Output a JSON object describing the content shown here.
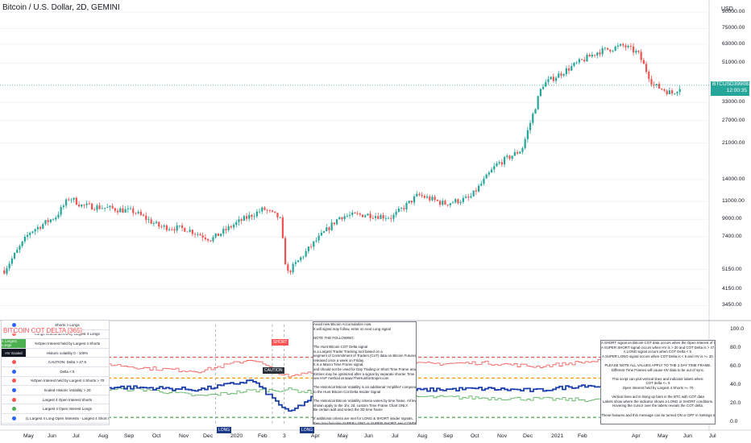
{
  "header": {
    "symbol_title": "Bitcoin / U.S. Dollar, 2D, GEMINI",
    "currency": "USD"
  },
  "price_scale": {
    "labels": [
      "90000.00",
      "75000.00",
      "63000.00",
      "51000.00",
      "33000.00",
      "27000.00",
      "21000.00",
      "14000.00",
      "11000.00",
      "9000.00",
      "7400.00",
      "5150.00",
      "4150.00",
      "3450.00"
    ],
    "price_tag_symbol": "BTCUSD",
    "price_tag_value": "39908.76",
    "price_tag_countdown": "12:00:35",
    "tag_color": "#26a69a"
  },
  "indicator_scale": {
    "labels": [
      "100.0",
      "80.0",
      "60.0",
      "40.0",
      "20.0",
      "0.0"
    ]
  },
  "time_axis": {
    "labels": [
      "May",
      "Jun",
      "Jul",
      "Aug",
      "Sep",
      "Oct",
      "Nov",
      "Dec",
      "2020",
      "Feb",
      "3",
      "Apr",
      "May",
      "Jun",
      "Jul",
      "Aug",
      "Sep",
      "Oct",
      "Nov",
      "Dec",
      "2021",
      "Feb",
      "Apr",
      "May",
      "Jun",
      "Jul"
    ]
  },
  "indicator": {
    "title": "BITCOIN COT DELTA [365]",
    "legend": [
      {
        "key": "",
        "text": "Shorts > Longs",
        "color": "#2962ff"
      },
      {
        "key": "",
        "text": "Longs Outnumbered by Largest 4 Longs",
        "color": "#ff5252"
      },
      {
        "key": "4 Largest Longs",
        "text": "%Open Interest held by Largest 4 Shorts",
        "color": "#4caf50"
      },
      {
        "key": "HV Scaled",
        "text": "Historic volatility 0 - 100%",
        "color": "#131722"
      },
      {
        "key": "",
        "text": "CAUTION: Delta > 47.5",
        "color": "#ff5252"
      },
      {
        "key": "",
        "text": "Delta < 5",
        "color": "#2962ff"
      },
      {
        "key": "",
        "text": "%Open Interest held by Largest 4 Shorts > 70",
        "color": "#ff5252"
      },
      {
        "key": "",
        "text": "Scaled Historic Volatility > 20",
        "color": "#2962ff"
      },
      {
        "key": "",
        "text": "Largest 4 Open Interest Shorts",
        "color": "#ff5252"
      },
      {
        "key": "",
        "text": "Largest 4 Open Interest Longs",
        "color": "#4caf50"
      },
      {
        "key": "",
        "text": "(L Largest 4 Long Open Interests - Largest 4 Short Open Interests)",
        "color": "#2962ff"
      }
    ],
    "callouts": {
      "short": "SHORT",
      "caution": "CAUTION",
      "long_1": "LONG",
      "long_2": "LONG"
    },
    "note_center": "Avoid new Bitcoin Accumulation now.\nIt will signal may follow, enter on next Long signal\n\nNOTE THE FOLLOWING:\n\nThe Hunt Bitcoin COT Delta signal\nis a Largest Trader Tracking tool based on a\nsegment of Commitment of Traders (CoT) data on Bitcoin Futures,\nreleased once a week on Friday.\nIt is a Macro Time Frame signal,\nand should not be used for Day Trading or Short Time Frame analysis.\nEntries may be optimized after a signal by separate shorter Time Frame analysis,\nsee HVF method at www.TheHuntforSniper.com\n\nThe Historical Bitcoin Volatility is an additional 'Amplifier' component\nto the Hunt Bitcoin Cot Delta Insider Signal\n\nThe Historical Bitcoin Volatility criteria varies by time frame. All levels\nshown apply to the 1hr, 2d, custom Time Frame Chart ONLY.\nBe certain add and select the 2D time frame\n\nIf additional criteria are met for LONG & SHORT insider signals,\nthey may become SUPER LONG or SUPER SHORT: see CONDITION above",
    "note_right": "A SHORT signal on Bitcoin COT data occurs when the Open Interest of the Largest 4 Shorts is >= 70.\nA SUPER SHORT signal occurs when HV is > 20 and COT Delta is > 47.5 on the 2 day time frame.\nA LONG signal occurs when COT Delta < 5.\nA SUPER LONG signal occurs when COT Delta is < 5 and HV is >= 20.\n\nPLEASE NOTE ALL VALUES APPLY TO THE 2 DAY TIME FRAME.\nDifferent Time Frames will cause HV data to be out of sync.\n\nThis script can plot vertical lines and indicator labels when:\nCOT delta <= 5\nOpen Interest held by Largest 4 Shorts >= 70\n\nVertical lines aid in lining up bars in the BTC with COT data\nLabels show where the indicator shows a LONG or SHORT conditions.\nHovering the cursor over the labels reveals the COT delta.\n\nThese features and this message can be turned ON or OFF in Settings Inputs"
  },
  "chart_data": [
    {
      "type": "candlestick",
      "title": "Bitcoin / U.S. Dollar, 2D, GEMINI",
      "y_scale": "log",
      "ylabel": "USD",
      "ylim": [
        3000,
        90000
      ],
      "x": [
        "2019-04-15",
        "2019-05-15",
        "2019-06-15",
        "2019-07-01",
        "2019-07-15",
        "2019-08-15",
        "2019-09-15",
        "2019-10-15",
        "2019-11-15",
        "2019-12-15",
        "2020-01-15",
        "2020-02-15",
        "2020-03-05",
        "2020-03-13",
        "2020-04-15",
        "2020-05-15",
        "2020-06-15",
        "2020-07-15",
        "2020-08-15",
        "2020-09-15",
        "2020-10-15",
        "2020-11-15",
        "2020-12-15",
        "2021-01-08",
        "2021-02-15",
        "2021-03-15",
        "2021-04-14",
        "2021-05-01",
        "2021-05-19",
        "2021-06-10",
        "2021-06-22"
      ],
      "close": [
        5100,
        7800,
        9300,
        11500,
        10500,
        10200,
        9800,
        8300,
        8100,
        7200,
        8700,
        10100,
        9100,
        4900,
        7000,
        9300,
        9500,
        9200,
        11800,
        10700,
        11400,
        16500,
        19500,
        40000,
        50000,
        58000,
        62000,
        57000,
        40000,
        36500,
        39900
      ],
      "last_price": 39908.76
    },
    {
      "type": "line",
      "title": "BITCOIN COT DELTA [365]",
      "ylim": [
        0,
        100
      ],
      "reference_lines": [
        70,
        47.5,
        5
      ],
      "x": [
        "2019-04-15",
        "2019-06-01",
        "2019-08-01",
        "2019-10-01",
        "2019-12-01",
        "2020-02-01",
        "2020-03-15",
        "2020-05-01",
        "2020-07-01",
        "2020-09-01",
        "2020-11-01",
        "2021-01-01",
        "2021-03-01",
        "2021-05-01",
        "2021-06-20"
      ],
      "series": [
        {
          "name": "Largest 4 Open Interest Shorts",
          "values": [
            60,
            62,
            64,
            58,
            55,
            68,
            48,
            60,
            62,
            63,
            64,
            60,
            65,
            68,
            70
          ]
        },
        {
          "name": "Largest 4 Open Interest Longs",
          "values": [
            30,
            32,
            36,
            35,
            28,
            34,
            35,
            30,
            28,
            27,
            26,
            25,
            24,
            22,
            21
          ]
        },
        {
          "name": "(L Largest 4 Long Open Interests - Largest 4 Short Open Interests)",
          "values": [
            38,
            35,
            38,
            37,
            35,
            45,
            10,
            38,
            33,
            35,
            36,
            34,
            40,
            32,
            24
          ]
        }
      ]
    }
  ]
}
